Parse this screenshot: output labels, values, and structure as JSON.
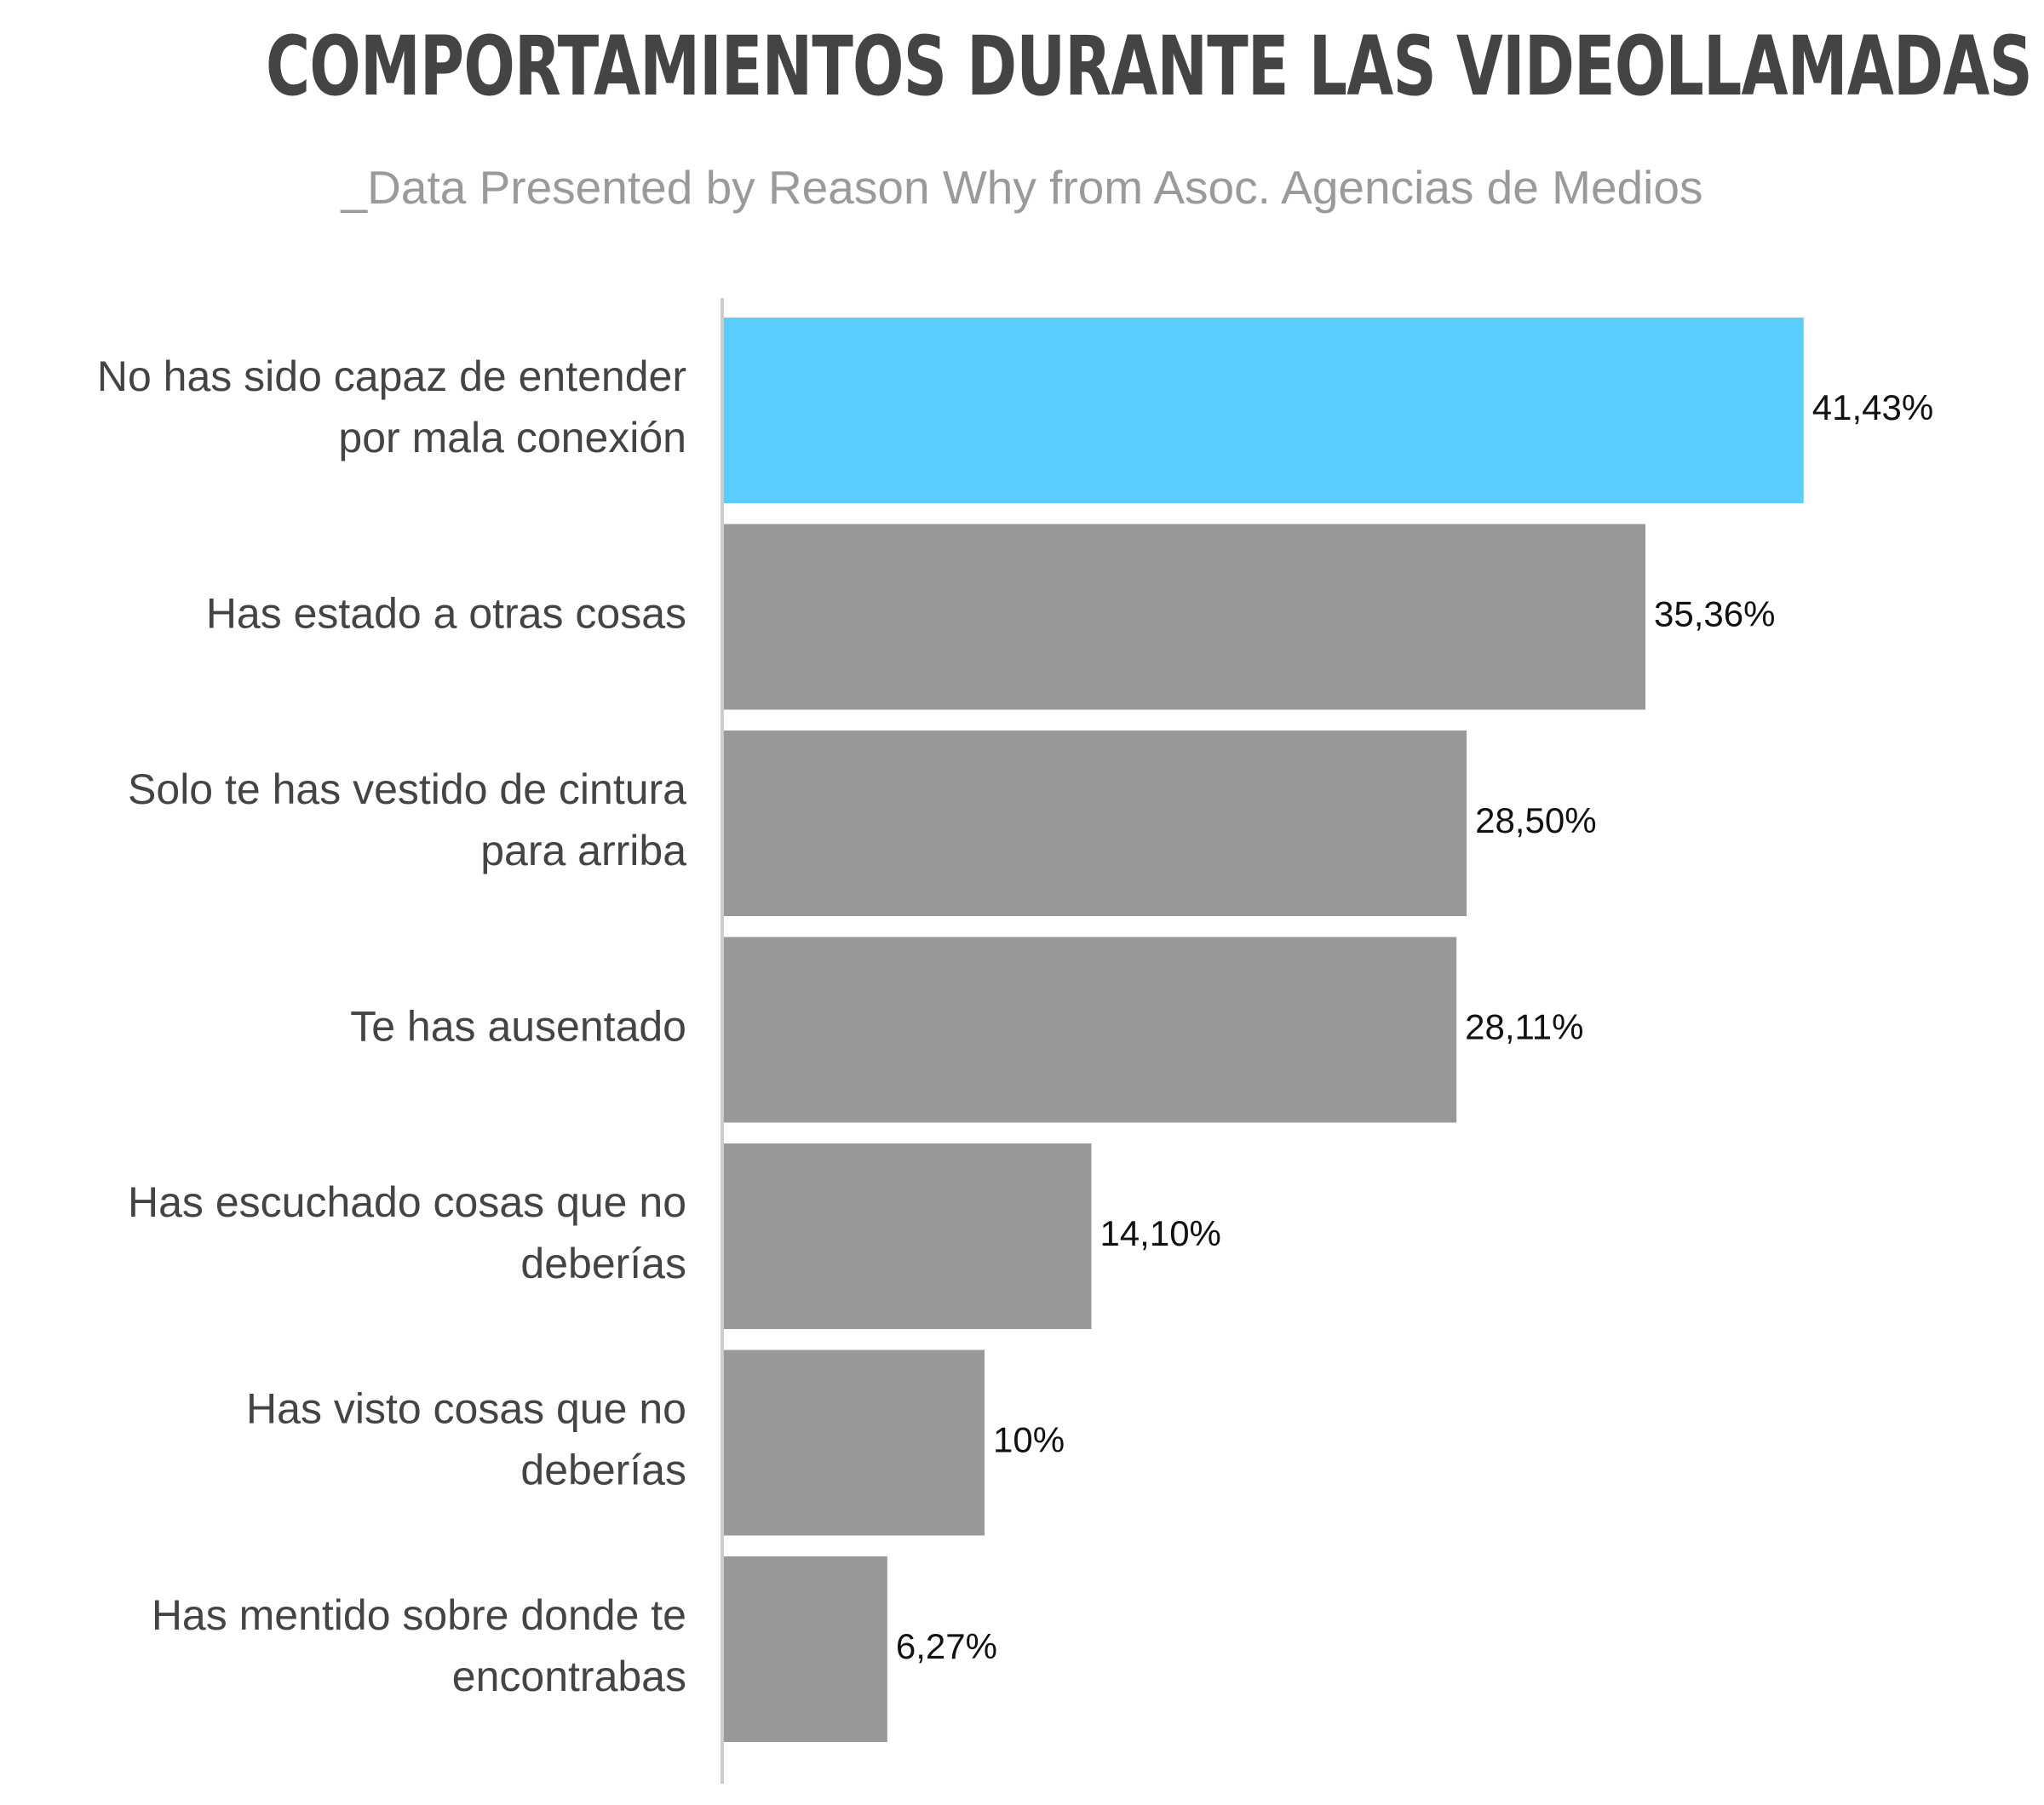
{
  "chart_data": {
    "type": "bar",
    "orientation": "horizontal",
    "title": "COMPORTAMIENTOS DURANTE LAS VIDEOLLAMADAS",
    "subtitle": "_Data Presented by Reason Why from Asoc. Agencias de Medios",
    "categories": [
      [
        "No has sido capaz de entender",
        "por mala conexión"
      ],
      [
        "Has estado a otras cosas"
      ],
      [
        "Solo te has vestido de cintura",
        "para arriba"
      ],
      [
        "Te has ausentado"
      ],
      [
        "Has escuchado cosas que no",
        "deberías"
      ],
      [
        "Has visto cosas que no",
        "deberías"
      ],
      [
        "Has mentido sobre donde te",
        "encontrabas"
      ]
    ],
    "values": [
      41.43,
      35.36,
      28.5,
      28.11,
      14.1,
      10,
      6.27
    ],
    "value_labels": [
      "41,43%",
      "35,36%",
      "28,50%",
      "28,11%",
      "14,10%",
      "10%",
      "6,27%"
    ],
    "xlim": [
      0,
      60
    ],
    "grid": false,
    "colors": {
      "highlight": "#5bcdfc",
      "default": "#999999",
      "axis": "#cccccc"
    },
    "highlight_index": 0
  }
}
